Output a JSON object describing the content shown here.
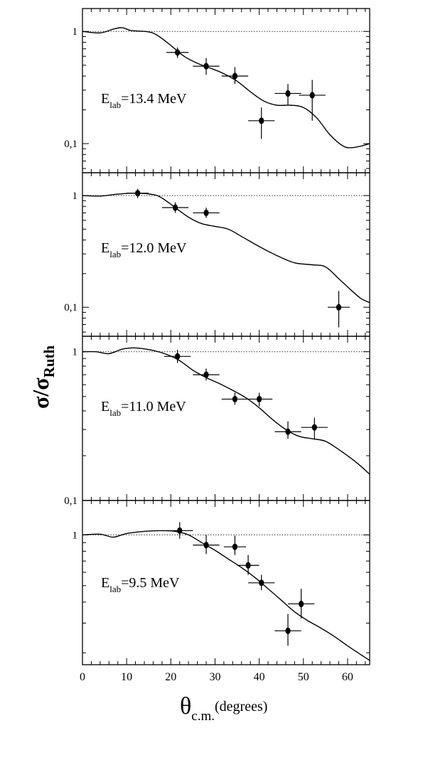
{
  "figure": {
    "ylabel": {
      "main": "σ/σ",
      "sub": "Ruth"
    },
    "xlabel": {
      "main": "θ",
      "sub": "c.m.",
      "suffix": "(degrees)"
    }
  },
  "chart_data": [
    {
      "type": "scatter",
      "panel": 1,
      "energy_label": {
        "prefix": "E",
        "sub": "lab",
        "value": "=13.4 MeV"
      },
      "xlim": [
        0,
        65
      ],
      "ylim": [
        0.055,
        1.6
      ],
      "yscale": "log",
      "ytick_labels": [
        {
          "value": 1,
          "text": "1"
        },
        {
          "value": 0.1,
          "text": "0,1"
        }
      ],
      "reference_line": 1,
      "data_points": [
        {
          "x": 21.5,
          "y": 0.65,
          "xerr": 2.5,
          "yerr": [
            0.58,
            0.72
          ]
        },
        {
          "x": 28.0,
          "y": 0.49,
          "xerr": 3.0,
          "yerr": [
            0.41,
            0.58
          ]
        },
        {
          "x": 34.5,
          "y": 0.4,
          "xerr": 3.0,
          "yerr": [
            0.34,
            0.48
          ]
        },
        {
          "x": 40.5,
          "y": 0.16,
          "xerr": 3.0,
          "yerr": [
            0.11,
            0.21
          ]
        },
        {
          "x": 46.5,
          "y": 0.28,
          "xerr": 3.0,
          "yerr": [
            0.22,
            0.34
          ]
        },
        {
          "x": 52.0,
          "y": 0.27,
          "xerr": 3.0,
          "yerr": [
            0.16,
            0.37
          ]
        }
      ],
      "fit_curve": [
        [
          0,
          1
        ],
        [
          4,
          0.97
        ],
        [
          7,
          1.05
        ],
        [
          9,
          1.08
        ],
        [
          11,
          1.02
        ],
        [
          15,
          0.99
        ],
        [
          17,
          0.92
        ],
        [
          20,
          0.75
        ],
        [
          23,
          0.6
        ],
        [
          26,
          0.52
        ],
        [
          29,
          0.47
        ],
        [
          32,
          0.42
        ],
        [
          35,
          0.36
        ],
        [
          38,
          0.29
        ],
        [
          41,
          0.24
        ],
        [
          44,
          0.22
        ],
        [
          47,
          0.22
        ],
        [
          50,
          0.21
        ],
        [
          53,
          0.17
        ],
        [
          56,
          0.12
        ],
        [
          59,
          0.095
        ],
        [
          61,
          0.092
        ],
        [
          63,
          0.095
        ],
        [
          65,
          0.1
        ]
      ]
    },
    {
      "type": "scatter",
      "panel": 2,
      "energy_label": {
        "prefix": "E",
        "sub": "lab",
        "value": "=12.0 MeV"
      },
      "xlim": [
        0,
        65
      ],
      "ylim": [
        0.055,
        1.6
      ],
      "yscale": "log",
      "ytick_labels": [
        {
          "value": 1,
          "text": "1"
        },
        {
          "value": 0.1,
          "text": "0,1"
        }
      ],
      "reference_line": 1,
      "data_points": [
        {
          "x": 12.5,
          "y": 1.05,
          "xerr": 2.5,
          "yerr": [
            0.95,
            1.15
          ]
        },
        {
          "x": 21.0,
          "y": 0.78,
          "xerr": 3.0,
          "yerr": [
            0.7,
            0.87
          ]
        },
        {
          "x": 28.0,
          "y": 0.7,
          "xerr": 3.0,
          "yerr": [
            0.63,
            0.78
          ]
        },
        {
          "x": 58.0,
          "y": 0.1,
          "xerr": 2.5,
          "yerr": [
            0.066,
            0.14
          ]
        }
      ],
      "fit_curve": [
        [
          0,
          1
        ],
        [
          4,
          0.99
        ],
        [
          8,
          1.03
        ],
        [
          12,
          1.05
        ],
        [
          16,
          1.02
        ],
        [
          18,
          0.95
        ],
        [
          21,
          0.78
        ],
        [
          24,
          0.64
        ],
        [
          27,
          0.56
        ],
        [
          30,
          0.53
        ],
        [
          33,
          0.5
        ],
        [
          36,
          0.43
        ],
        [
          40,
          0.35
        ],
        [
          44,
          0.29
        ],
        [
          48,
          0.25
        ],
        [
          52,
          0.24
        ],
        [
          55,
          0.23
        ],
        [
          58,
          0.18
        ],
        [
          61,
          0.14
        ],
        [
          63,
          0.12
        ],
        [
          65,
          0.11
        ]
      ]
    },
    {
      "type": "scatter",
      "panel": 3,
      "energy_label": {
        "prefix": "E",
        "sub": "lab",
        "value": "=11.0 MeV"
      },
      "xlim": [
        0,
        65
      ],
      "ylim": [
        0.1,
        1.27
      ],
      "yscale": "log",
      "ytick_labels": [
        {
          "value": 1,
          "text": "1"
        },
        {
          "value": 0.1,
          "text": "0,1"
        }
      ],
      "reference_line": 1,
      "data_points": [
        {
          "x": 21.5,
          "y": 0.93,
          "xerr": 3.0,
          "yerr": [
            0.84,
            1.03
          ]
        },
        {
          "x": 28.0,
          "y": 0.7,
          "xerr": 3.0,
          "yerr": [
            0.64,
            0.77
          ]
        },
        {
          "x": 34.5,
          "y": 0.48,
          "xerr": 3.0,
          "yerr": [
            0.44,
            0.53
          ]
        },
        {
          "x": 40.0,
          "y": 0.48,
          "xerr": 3.0,
          "yerr": [
            0.43,
            0.53
          ]
        },
        {
          "x": 46.5,
          "y": 0.29,
          "xerr": 3.0,
          "yerr": [
            0.26,
            0.34
          ]
        },
        {
          "x": 52.5,
          "y": 0.31,
          "xerr": 3.0,
          "yerr": [
            0.26,
            0.36
          ]
        }
      ],
      "fit_curve": [
        [
          0,
          1
        ],
        [
          3,
          1
        ],
        [
          6,
          0.97
        ],
        [
          9,
          1.04
        ],
        [
          12,
          1.06
        ],
        [
          16,
          1.02
        ],
        [
          19,
          0.96
        ],
        [
          22,
          0.87
        ],
        [
          25,
          0.75
        ],
        [
          28,
          0.67
        ],
        [
          31,
          0.61
        ],
        [
          34,
          0.55
        ],
        [
          37,
          0.49
        ],
        [
          40,
          0.42
        ],
        [
          43,
          0.35
        ],
        [
          46,
          0.3
        ],
        [
          49,
          0.27
        ],
        [
          52,
          0.26
        ],
        [
          55,
          0.25
        ],
        [
          58,
          0.22
        ],
        [
          61,
          0.19
        ],
        [
          63,
          0.17
        ],
        [
          65,
          0.15
        ]
      ]
    },
    {
      "type": "scatter",
      "panel": 4,
      "energy_label": {
        "prefix": "E",
        "sub": "lab",
        "value": "=9.5 MeV"
      },
      "xlim": [
        0,
        65
      ],
      "ylim": [
        0.17,
        1.6
      ],
      "yscale": "log",
      "xticks": [
        0,
        10,
        20,
        30,
        40,
        50,
        60
      ],
      "ytick_labels": [
        {
          "value": 1,
          "text": "1"
        }
      ],
      "reference_line": 1,
      "data_points": [
        {
          "x": 22.0,
          "y": 1.06,
          "xerr": 3.0,
          "yerr": [
            0.95,
            1.19
          ]
        },
        {
          "x": 28.0,
          "y": 0.87,
          "xerr": 3.0,
          "yerr": [
            0.77,
            1.0
          ]
        },
        {
          "x": 34.5,
          "y": 0.85,
          "xerr": 2.5,
          "yerr": [
            0.76,
            0.99
          ]
        },
        {
          "x": 37.5,
          "y": 0.66,
          "xerr": 2.5,
          "yerr": [
            0.58,
            0.76
          ]
        },
        {
          "x": 40.5,
          "y": 0.52,
          "xerr": 3.0,
          "yerr": [
            0.47,
            0.58
          ]
        },
        {
          "x": 46.5,
          "y": 0.27,
          "xerr": 3.0,
          "yerr": [
            0.22,
            0.34
          ]
        },
        {
          "x": 49.5,
          "y": 0.39,
          "xerr": 3.0,
          "yerr": [
            0.32,
            0.48
          ]
        }
      ],
      "fit_curve": [
        [
          0,
          1
        ],
        [
          4,
          1.01
        ],
        [
          7,
          0.97
        ],
        [
          10,
          1.02
        ],
        [
          14,
          1.05
        ],
        [
          18,
          1.06
        ],
        [
          21,
          1.05
        ],
        [
          24,
          1.0
        ],
        [
          27,
          0.9
        ],
        [
          30,
          0.81
        ],
        [
          33,
          0.72
        ],
        [
          36,
          0.64
        ],
        [
          39,
          0.56
        ],
        [
          42,
          0.48
        ],
        [
          45,
          0.41
        ],
        [
          48,
          0.35
        ],
        [
          51,
          0.31
        ],
        [
          54,
          0.28
        ],
        [
          57,
          0.25
        ],
        [
          60,
          0.22
        ],
        [
          63,
          0.195
        ],
        [
          65,
          0.18
        ]
      ]
    }
  ]
}
